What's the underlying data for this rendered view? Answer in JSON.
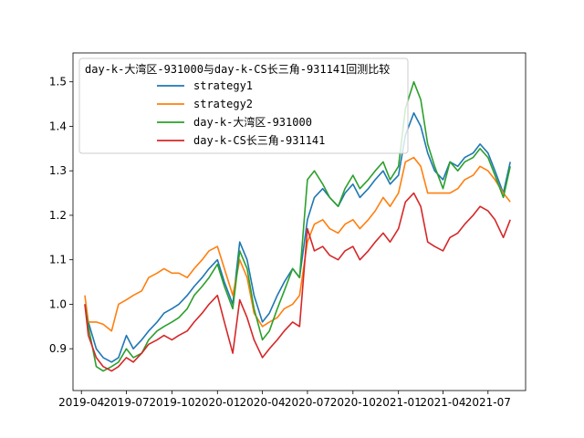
{
  "chart_data": {
    "type": "line",
    "title": "",
    "xlabel": "",
    "ylabel": "",
    "xlim": [
      "2019-03-15",
      "2021-09-15"
    ],
    "ylim": [
      0.806,
      1.565
    ],
    "grid": false,
    "legend_placement": "upper-left",
    "legend_title": "day-k-大湾区-931000与day-k-CS长三角-931141回测比较",
    "x_ticks": [
      "2019-04",
      "2019-07",
      "2019-10",
      "2020-01",
      "2020-04",
      "2020-07",
      "2020-10",
      "2021-01",
      "2021-04",
      "2021-07"
    ],
    "y_ticks": [
      "0.9",
      "1.0",
      "1.1",
      "1.2",
      "1.3",
      "1.4",
      "1.5"
    ],
    "x": [
      "2019-04-08",
      "2019-04-15",
      "2019-05-01",
      "2019-05-15",
      "2019-06-01",
      "2019-06-15",
      "2019-07-01",
      "2019-07-15",
      "2019-08-01",
      "2019-08-15",
      "2019-09-01",
      "2019-09-15",
      "2019-10-01",
      "2019-10-15",
      "2019-11-01",
      "2019-11-15",
      "2019-12-01",
      "2019-12-15",
      "2020-01-01",
      "2020-01-15",
      "2020-02-01",
      "2020-02-15",
      "2020-03-01",
      "2020-03-15",
      "2020-04-01",
      "2020-04-15",
      "2020-05-01",
      "2020-05-15",
      "2020-06-01",
      "2020-06-15",
      "2020-07-01",
      "2020-07-15",
      "2020-08-01",
      "2020-08-15",
      "2020-09-01",
      "2020-09-15",
      "2020-10-01",
      "2020-10-15",
      "2020-11-01",
      "2020-11-15",
      "2020-12-01",
      "2020-12-15",
      "2021-01-01",
      "2021-01-15",
      "2021-02-01",
      "2021-02-15",
      "2021-03-01",
      "2021-03-15",
      "2021-04-01",
      "2021-04-15",
      "2021-05-01",
      "2021-05-15",
      "2021-06-01",
      "2021-06-15",
      "2021-07-01",
      "2021-07-15",
      "2021-08-01",
      "2021-08-15"
    ],
    "series": [
      {
        "name": "strategy1",
        "color": "#1f77b4",
        "values": [
          1.0,
          0.96,
          0.9,
          0.88,
          0.87,
          0.88,
          0.93,
          0.9,
          0.92,
          0.94,
          0.96,
          0.98,
          0.99,
          1.0,
          1.02,
          1.04,
          1.06,
          1.08,
          1.1,
          1.05,
          1.0,
          1.14,
          1.1,
          1.02,
          0.96,
          0.98,
          1.02,
          1.05,
          1.08,
          1.06,
          1.19,
          1.24,
          1.26,
          1.24,
          1.22,
          1.25,
          1.27,
          1.24,
          1.26,
          1.28,
          1.3,
          1.27,
          1.29,
          1.38,
          1.43,
          1.4,
          1.34,
          1.3,
          1.28,
          1.32,
          1.31,
          1.33,
          1.34,
          1.36,
          1.34,
          1.3,
          1.25,
          1.32
        ]
      },
      {
        "name": "strategy2",
        "color": "#ff7f0e",
        "values": [
          1.02,
          0.96,
          0.96,
          0.955,
          0.94,
          1.0,
          1.01,
          1.02,
          1.03,
          1.06,
          1.07,
          1.08,
          1.07,
          1.07,
          1.06,
          1.08,
          1.1,
          1.12,
          1.13,
          1.08,
          1.02,
          1.1,
          1.06,
          0.98,
          0.95,
          0.96,
          0.97,
          0.99,
          1.0,
          1.02,
          1.14,
          1.18,
          1.19,
          1.17,
          1.16,
          1.18,
          1.19,
          1.17,
          1.19,
          1.21,
          1.24,
          1.22,
          1.25,
          1.32,
          1.33,
          1.31,
          1.25,
          1.25,
          1.25,
          1.25,
          1.26,
          1.28,
          1.29,
          1.31,
          1.3,
          1.28,
          1.25,
          1.23
        ]
      },
      {
        "name": "day-k-大湾区-931000",
        "color": "#2ca02c",
        "values": [
          1.0,
          0.95,
          0.86,
          0.85,
          0.86,
          0.87,
          0.9,
          0.88,
          0.89,
          0.92,
          0.94,
          0.95,
          0.96,
          0.97,
          0.99,
          1.02,
          1.04,
          1.06,
          1.09,
          1.04,
          0.99,
          1.12,
          1.08,
          0.99,
          0.92,
          0.94,
          0.99,
          1.03,
          1.08,
          1.06,
          1.28,
          1.3,
          1.27,
          1.24,
          1.22,
          1.26,
          1.29,
          1.26,
          1.28,
          1.3,
          1.32,
          1.28,
          1.31,
          1.44,
          1.5,
          1.46,
          1.36,
          1.31,
          1.26,
          1.32,
          1.3,
          1.32,
          1.33,
          1.35,
          1.33,
          1.29,
          1.24,
          1.31
        ]
      },
      {
        "name": "day-k-CS长三角-931141",
        "color": "#d62728",
        "values": [
          1.0,
          0.93,
          0.88,
          0.86,
          0.85,
          0.86,
          0.88,
          0.87,
          0.89,
          0.91,
          0.92,
          0.93,
          0.92,
          0.93,
          0.94,
          0.96,
          0.98,
          1.0,
          1.02,
          0.96,
          0.89,
          1.01,
          0.97,
          0.92,
          0.88,
          0.9,
          0.92,
          0.94,
          0.96,
          0.95,
          1.17,
          1.12,
          1.13,
          1.11,
          1.1,
          1.12,
          1.13,
          1.1,
          1.12,
          1.14,
          1.16,
          1.14,
          1.17,
          1.23,
          1.25,
          1.22,
          1.14,
          1.13,
          1.12,
          1.15,
          1.16,
          1.18,
          1.2,
          1.22,
          1.21,
          1.19,
          1.15,
          1.19
        ]
      }
    ]
  }
}
